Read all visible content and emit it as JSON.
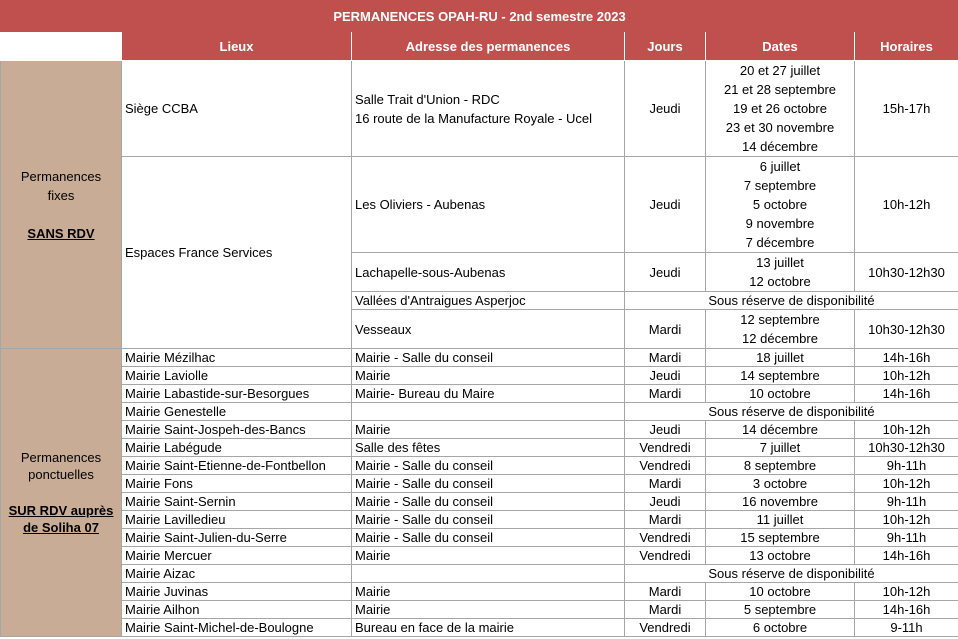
{
  "title": "PERMANENCES OPAH-RU  - 2nd semestre 2023",
  "headers": {
    "lieux": "Lieux",
    "adresse": "Adresse des permanences",
    "jours": "Jours",
    "dates": "Dates",
    "horaires": "Horaires"
  },
  "fixes": {
    "label_line1": "Permanences",
    "label_line2": "fixes",
    "sub": "SANS RDV",
    "siege": {
      "lieu": "Siège CCBA",
      "adresse1": "Salle Trait d'Union - RDC",
      "adresse2": "16 route de la Manufacture Royale - Ucel",
      "jour": "Jeudi",
      "dates": [
        "20 et 27 juillet",
        "21 et 28 septembre",
        "19 et 26 octobre",
        "23 et 30 novembre",
        "14 décembre"
      ],
      "horaire": "15h-17h"
    },
    "efs_lieu": "Espaces France Services",
    "oliviers": {
      "adresse": "Les Oliviers - Aubenas",
      "jour": "Jeudi",
      "dates": [
        "6 juillet",
        "7 septembre",
        "5 octobre",
        "9 novembre",
        "7 décembre"
      ],
      "horaire": "10h-12h"
    },
    "lachapelle": {
      "adresse": "Lachapelle-sous-Aubenas",
      "jour": "Jeudi",
      "dates": [
        "13 juillet",
        "12 octobre"
      ],
      "horaire": "10h30-12h30"
    },
    "vallees": {
      "adresse": "Vallées d'Antraigues Asperjoc",
      "note": "Sous réserve de disponibilité"
    },
    "vesseaux": {
      "adresse": "Vesseaux",
      "jour": "Mardi",
      "dates": [
        "12 septembre",
        "12 décembre"
      ],
      "horaire": "10h30-12h30"
    }
  },
  "ponctuelles": {
    "label_line1": "Permanences",
    "label_line2": "ponctuelles",
    "sub_line1": "SUR RDV auprès",
    "sub_line2": "de Soliha 07",
    "rows": [
      {
        "lieu": "Mairie Mézilhac",
        "adresse": "Mairie - Salle du conseil",
        "jour": "Mardi",
        "date": "18 juillet",
        "horaire": "14h-16h"
      },
      {
        "lieu": "Mairie Laviolle",
        "adresse": "Mairie",
        "jour": "Jeudi",
        "date": "14 septembre",
        "horaire": "10h-12h"
      },
      {
        "lieu": "Mairie Labastide-sur-Besorgues",
        "adresse": "Mairie- Bureau du Maire",
        "jour": "Mardi",
        "date": "10 octobre",
        "horaire": "14h-16h"
      },
      {
        "lieu": "Mairie Genestelle",
        "note": "Sous réserve de disponibilité"
      },
      {
        "lieu": "Mairie Saint-Jospeh-des-Bancs",
        "adresse": "Mairie",
        "jour": "Jeudi",
        "date": "14 décembre",
        "horaire": "10h-12h"
      },
      {
        "lieu": "Mairie Labégude",
        "adresse": "Salle des fêtes",
        "jour": "Vendredi",
        "date": "7 juillet",
        "horaire": "10h30-12h30"
      },
      {
        "lieu": "Mairie Saint-Etienne-de-Fontbellon",
        "adresse": "Mairie - Salle du conseil",
        "jour": "Vendredi",
        "date": "8 septembre",
        "horaire": "9h-11h"
      },
      {
        "lieu": "Mairie Fons",
        "adresse": "Mairie - Salle du conseil",
        "jour": "Mardi",
        "date": "3 octobre",
        "horaire": "10h-12h"
      },
      {
        "lieu": "Mairie Saint-Sernin",
        "adresse": "Mairie - Salle du conseil",
        "jour": "Jeudi",
        "date": "16 novembre",
        "horaire": "9h-11h"
      },
      {
        "lieu": "Mairie Lavilledieu",
        "adresse": "Mairie - Salle du conseil",
        "jour": "Mardi",
        "date": "11 juillet",
        "horaire": "10h-12h"
      },
      {
        "lieu": "Mairie Saint-Julien-du-Serre",
        "adresse": "Mairie - Salle du conseil",
        "jour": "Vendredi",
        "date": "15 septembre",
        "horaire": "9h-11h"
      },
      {
        "lieu": "Mairie Mercuer",
        "adresse": "Mairie",
        "jour": "Vendredi",
        "date": "13 octobre",
        "horaire": "14h-16h"
      },
      {
        "lieu": "Mairie Aizac",
        "note": "Sous réserve de disponibilité"
      },
      {
        "lieu": "Mairie Juvinas",
        "adresse": "Mairie",
        "jour": "Mardi",
        "date": "10 octobre",
        "horaire": "10h-12h"
      },
      {
        "lieu": "Mairie Ailhon",
        "adresse": "Mairie",
        "jour": "Mardi",
        "date": "5 septembre",
        "horaire": "14h-16h"
      },
      {
        "lieu": "Mairie Saint-Michel-de-Boulogne",
        "adresse": "Bureau en face de la mairie",
        "jour": "Vendredi",
        "date": "6 octobre",
        "horaire": "9-11h"
      }
    ]
  }
}
